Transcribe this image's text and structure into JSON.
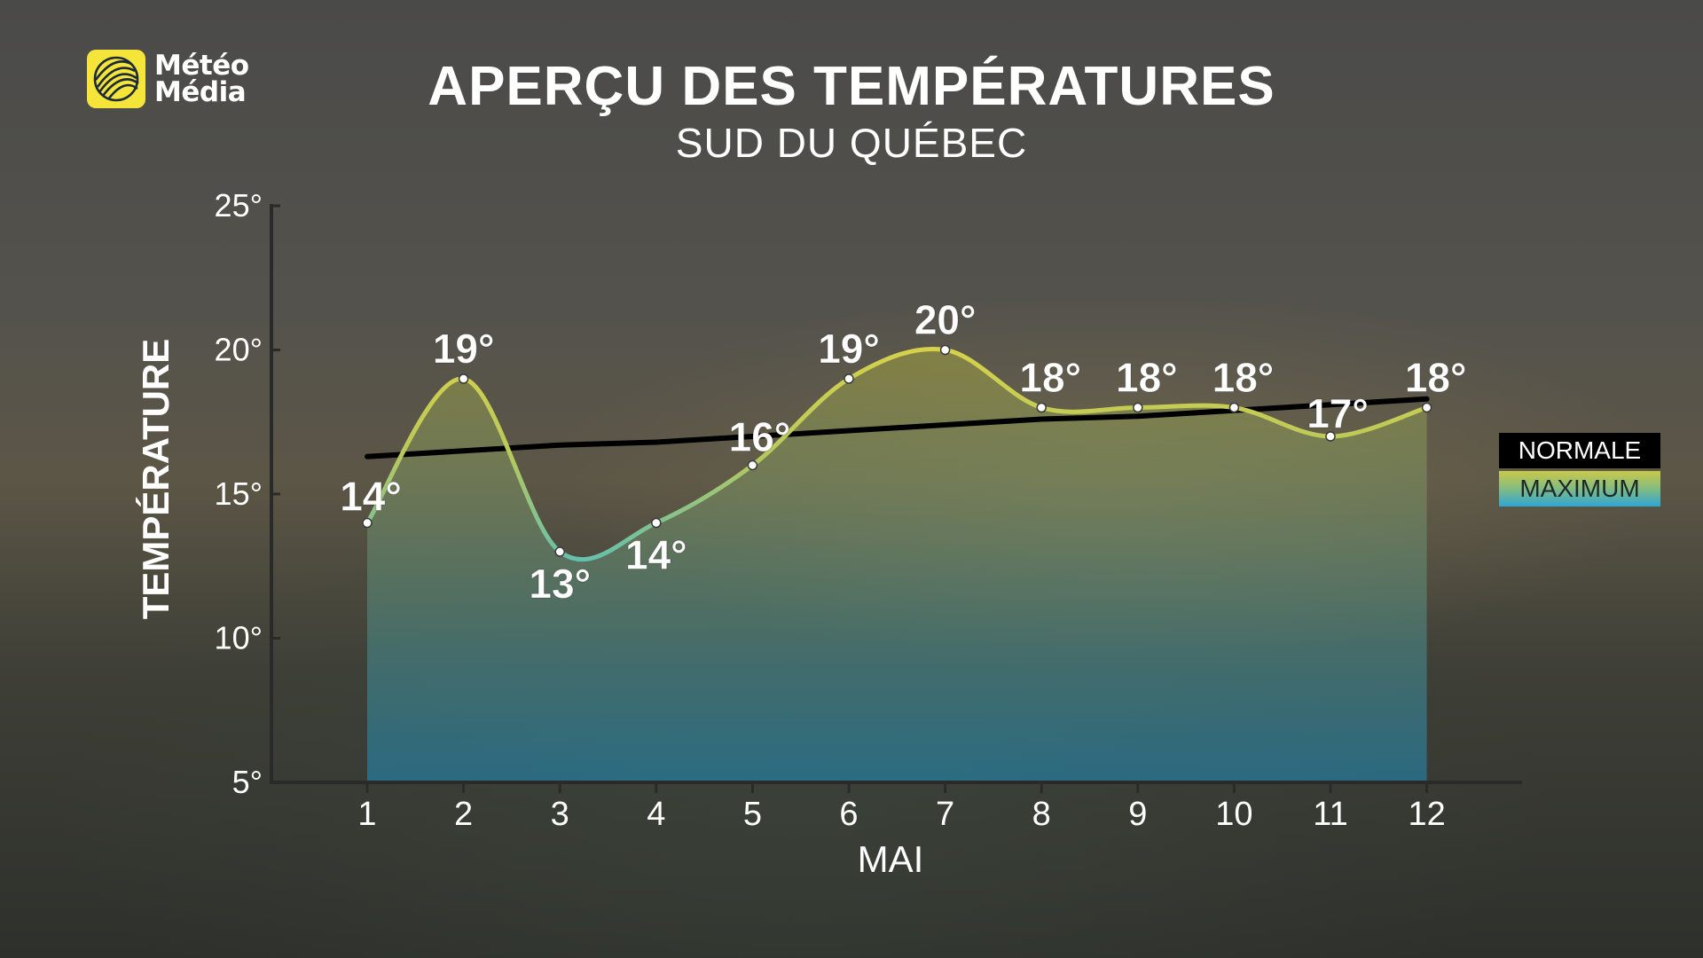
{
  "brand": {
    "line1": "Météo",
    "line2": "Média"
  },
  "header": {
    "title": "APERÇU DES TEMPÉRATURES",
    "subtitle": "SUD DU QUÉBEC"
  },
  "legend": {
    "normal_label": "NORMALE",
    "max_label": "MAXIMUM"
  },
  "colors": {
    "normal_line": "#000000",
    "accent": "#f5e53a"
  },
  "chart_data": {
    "type": "line",
    "title": "APERÇU DES TEMPÉRATURES",
    "subtitle": "SUD DU QUÉBEC",
    "xlabel": "MAI",
    "ylabel": "TEMPÉRATURE",
    "x": [
      1,
      2,
      3,
      4,
      5,
      6,
      7,
      8,
      9,
      10,
      11,
      12
    ],
    "ylim": [
      5,
      25
    ],
    "yticks": [
      "5°",
      "10°",
      "15°",
      "20°",
      "25°"
    ],
    "ytick_values": [
      5,
      10,
      15,
      20,
      25
    ],
    "series": [
      {
        "name": "MAXIMUM",
        "values": [
          14,
          19,
          13,
          14,
          16,
          19,
          20,
          18,
          18,
          18,
          17,
          18
        ],
        "labels": [
          "14°",
          "19°",
          "13°",
          "14°",
          "16°",
          "19°",
          "20°",
          "18°",
          "18°",
          "18°",
          "17°",
          "18°"
        ]
      },
      {
        "name": "NORMALE",
        "values": [
          16.3,
          16.5,
          16.7,
          16.8,
          17.0,
          17.2,
          17.4,
          17.6,
          17.7,
          17.9,
          18.1,
          18.3
        ]
      }
    ],
    "legend_position": "right",
    "grid": false
  }
}
